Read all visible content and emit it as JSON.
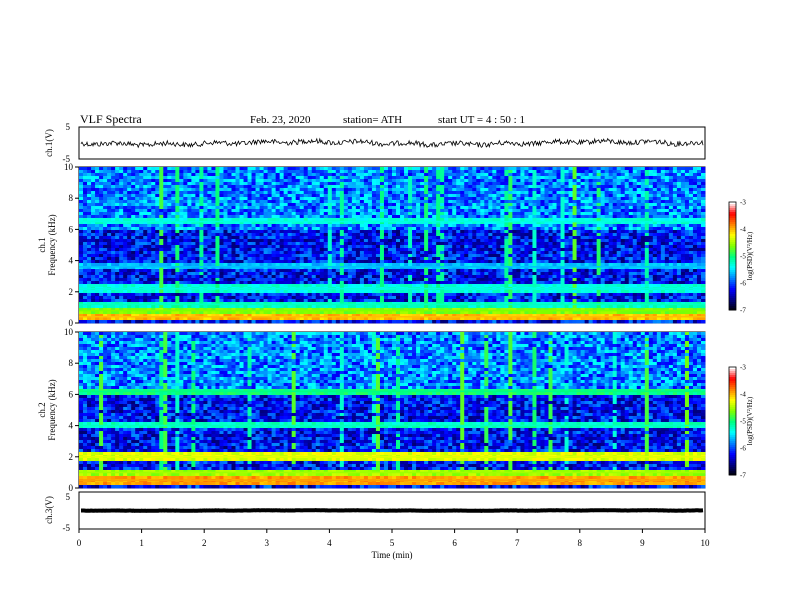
{
  "header": {
    "title": "VLF  Spectra",
    "date": "Feb. 23, 2020",
    "station": "station= ATH",
    "start_ut": "start  UT  =   4  : 50 : 1"
  },
  "colors": {
    "spectrogram_scale": [
      "#000000",
      "#000080",
      "#0000ff",
      "#0080ff",
      "#00ffff",
      "#00ff80",
      "#80ff00",
      "#ffff00",
      "#ff8000",
      "#ff0000",
      "#ffffff"
    ],
    "waveform": "#000000",
    "axes": "#000000"
  },
  "chart_data": [
    {
      "type": "line",
      "name": "ch.1 waveform",
      "ylabel": "ch.1(V)",
      "ylim": [
        -5,
        5
      ],
      "yticks": [
        "5",
        "-5"
      ],
      "xlim": [
        0,
        10
      ],
      "description_values": {
        "mean_level": 0,
        "amplitude_approx": 1
      }
    },
    {
      "type": "heatmap",
      "ylabel": "ch.1\nFrequency  (kHz)",
      "ylim": [
        0,
        10
      ],
      "yticks": [
        "0",
        "2",
        "4",
        "6",
        "8",
        "10"
      ],
      "xlim": [
        0,
        10
      ],
      "colorbar": {
        "label": "log(PSD)(V²/Hz)",
        "ticks": [
          "-3",
          "-4",
          "-5",
          "-6",
          "-7"
        ],
        "range": [
          -7,
          -3
        ]
      },
      "bands": [
        {
          "freq_khz": 0.4,
          "level": -4.0
        },
        {
          "freq_khz": 0.8,
          "level": -4.6
        },
        {
          "freq_khz": 1.2,
          "level": -5.2
        },
        {
          "freq_khz": 2.2,
          "level": -5.3
        },
        {
          "freq_khz": 3.6,
          "level": -5.6
        },
        {
          "freq_khz": 6.5,
          "level": -5.3
        }
      ]
    },
    {
      "type": "heatmap",
      "ylabel": "ch.2\nFrequency  (kHz)",
      "ylim": [
        0,
        10
      ],
      "yticks": [
        "0",
        "2",
        "4",
        "6",
        "8",
        "10"
      ],
      "xlim": [
        0,
        10
      ],
      "colorbar": {
        "label": "log(PSD)(V²/Hz)",
        "ticks": [
          "-3",
          "-4",
          "-5",
          "-6",
          "-7"
        ],
        "range": [
          -7,
          -3
        ]
      },
      "bands": [
        {
          "freq_khz": 0.5,
          "level": -3.9
        },
        {
          "freq_khz": 1.0,
          "level": -4.5
        },
        {
          "freq_khz": 2.0,
          "level": -4.3
        },
        {
          "freq_khz": 4.0,
          "level": -5.2
        },
        {
          "freq_khz": 6.2,
          "level": -5.0
        }
      ]
    },
    {
      "type": "line",
      "name": "ch.3 waveform",
      "ylabel": "ch.3(V)",
      "ylim": [
        -5,
        5
      ],
      "yticks": [
        "5",
        "-5"
      ],
      "xlim": [
        0,
        10
      ],
      "description_values": {
        "mean_level": 0,
        "amplitude_approx": 0.3
      }
    }
  ],
  "xaxis": {
    "label": "Time  (min)",
    "ticks": [
      "0",
      "1",
      "2",
      "3",
      "4",
      "5",
      "6",
      "7",
      "8",
      "9",
      "10"
    ]
  }
}
